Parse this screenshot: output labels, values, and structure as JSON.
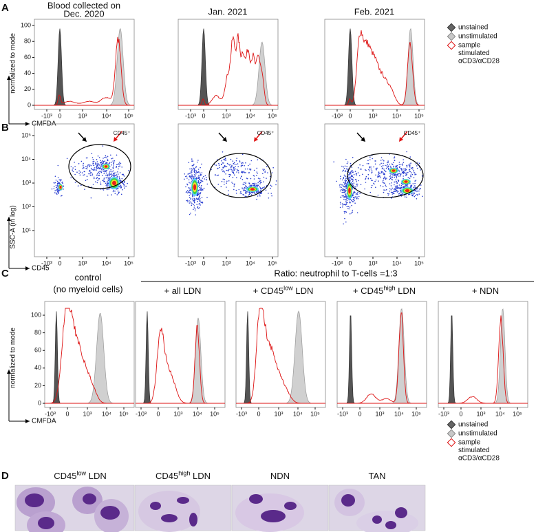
{
  "panel_labels": [
    "A",
    "B",
    "C",
    "D"
  ],
  "panel_a": {
    "titles": [
      [
        "Blood collected on",
        "Dec. 2020"
      ],
      [
        "Jan. 2021"
      ],
      [
        "Feb. 2021"
      ]
    ],
    "y_label": "normalized to mode",
    "x_label": "CMFDA",
    "yticks": [
      "0",
      "20",
      "40",
      "60",
      "80",
      "100"
    ],
    "xticks": [
      "-10³",
      "0",
      "10³",
      "10⁴",
      "10⁵"
    ],
    "legend": {
      "unstained": "unstained",
      "unstimulated": "unstimulated",
      "stimulated": [
        "sample",
        "stimulated",
        "αCD3/αCD28"
      ]
    }
  },
  "panel_b": {
    "y_label": "SSC-A (in log)",
    "x_label": "CD45",
    "yticks": [
      "10¹",
      "10²",
      "10³",
      "10⁴",
      "10⁵"
    ],
    "xticks": [
      "-10³",
      "0",
      "10³",
      "10⁴",
      "10⁵"
    ],
    "gate_labels": [
      "CD45⁺",
      "CD45⁺",
      "CD45⁺"
    ]
  },
  "panel_c": {
    "control_title": [
      "control",
      "(no myeloid cells)"
    ],
    "ratio_title": "Ratio: neutrophil to T-cells =1:3",
    "conditions": [
      {
        "text": "+ all LDN"
      },
      {
        "text": "+ CD45",
        "sup": "low",
        "after": " LDN"
      },
      {
        "text": "+ CD45",
        "sup": "high",
        "after": " LDN"
      },
      {
        "text": "+ NDN"
      }
    ],
    "y_label": "normalized to mode",
    "x_label": "CMFDA",
    "yticks": [
      "0",
      "20",
      "40",
      "60",
      "80",
      "100"
    ],
    "xticks": [
      "-10³",
      "0",
      "10³",
      "10⁴",
      "10⁵"
    ],
    "legend": {
      "unstained": "unstained",
      "unstimulated": "unstimulated",
      "stimulated": [
        "sample",
        "stimulated",
        "αCD3/αCD28"
      ]
    }
  },
  "panel_d": {
    "captions": [
      {
        "text": "CD45",
        "sup": "low",
        "after": " LDN"
      },
      {
        "text": "CD45",
        "sup": "high",
        "after": " LDN"
      },
      {
        "text": "NDN"
      },
      {
        "text": "TAN"
      }
    ]
  }
}
